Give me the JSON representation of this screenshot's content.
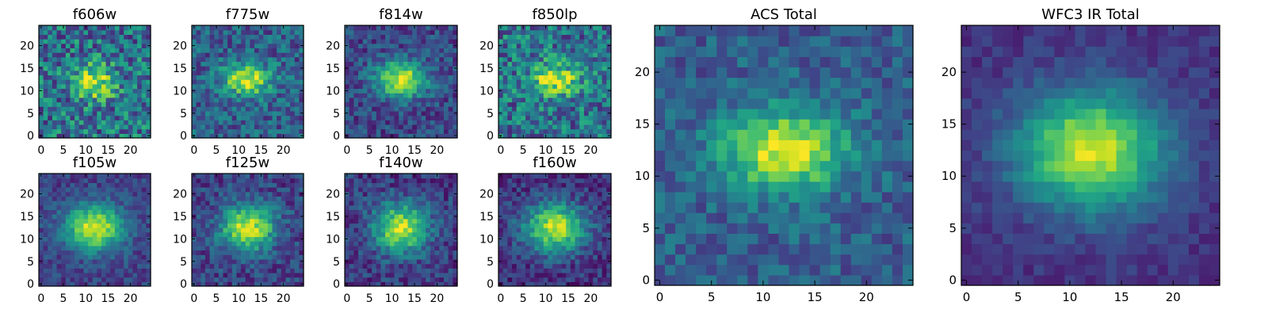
{
  "colormap": "viridis",
  "chart_data": [
    {
      "type": "heatmap",
      "title": "f606w",
      "xticks": [
        0,
        5,
        10,
        15,
        20
      ],
      "yticks": [
        0,
        5,
        10,
        15,
        20
      ],
      "xlim": [
        -0.5,
        24.5
      ],
      "ylim": [
        -0.5,
        24.5
      ],
      "grid_size": 25,
      "peak": [
        12,
        12
      ],
      "sigma": [
        3.2,
        2.6
      ],
      "amplitude": 0.55,
      "baseline": 0.38,
      "noise": 0.28
    },
    {
      "type": "heatmap",
      "title": "f775w",
      "xticks": [
        0,
        5,
        10,
        15,
        20
      ],
      "yticks": [
        0,
        5,
        10,
        15,
        20
      ],
      "xlim": [
        -0.5,
        24.5
      ],
      "ylim": [
        -0.5,
        24.5
      ],
      "grid_size": 25,
      "peak": [
        12,
        12.5
      ],
      "sigma": [
        3.8,
        2.4
      ],
      "amplitude": 0.65,
      "baseline": 0.3,
      "noise": 0.2
    },
    {
      "type": "heatmap",
      "title": "f814w",
      "xticks": [
        0,
        5,
        10,
        15,
        20
      ],
      "yticks": [
        0,
        5,
        10,
        15,
        20
      ],
      "xlim": [
        -0.5,
        24.5
      ],
      "ylim": [
        -0.5,
        24.5
      ],
      "grid_size": 25,
      "peak": [
        12,
        12.5
      ],
      "sigma": [
        4.0,
        2.8
      ],
      "amplitude": 0.72,
      "baseline": 0.22,
      "noise": 0.16
    },
    {
      "type": "heatmap",
      "title": "f850lp",
      "xticks": [
        0,
        5,
        10,
        15,
        20
      ],
      "yticks": [
        0,
        5,
        10,
        15,
        20
      ],
      "xlim": [
        -0.5,
        24.5
      ],
      "ylim": [
        -0.5,
        24.5
      ],
      "grid_size": 25,
      "peak": [
        12,
        12.5
      ],
      "sigma": [
        3.6,
        2.6
      ],
      "amplitude": 0.55,
      "baseline": 0.38,
      "noise": 0.26
    },
    {
      "type": "heatmap",
      "title": "f105w",
      "xticks": [
        0,
        5,
        10,
        15,
        20
      ],
      "yticks": [
        0,
        5,
        10,
        15,
        20
      ],
      "xlim": [
        -0.5,
        24.5
      ],
      "ylim": [
        -0.5,
        24.5
      ],
      "grid_size": 25,
      "peak": [
        12,
        12.5
      ],
      "sigma": [
        4.5,
        3.6
      ],
      "amplitude": 0.75,
      "baseline": 0.2,
      "noise": 0.12
    },
    {
      "type": "heatmap",
      "title": "f125w",
      "xticks": [
        0,
        5,
        10,
        15,
        20
      ],
      "yticks": [
        0,
        5,
        10,
        15,
        20
      ],
      "xlim": [
        -0.5,
        24.5
      ],
      "ylim": [
        -0.5,
        24.5
      ],
      "grid_size": 25,
      "peak": [
        12,
        12.5
      ],
      "sigma": [
        4.3,
        3.6
      ],
      "amplitude": 0.72,
      "baseline": 0.2,
      "noise": 0.15
    },
    {
      "type": "heatmap",
      "title": "f140w",
      "xticks": [
        0,
        5,
        10,
        15,
        20
      ],
      "yticks": [
        0,
        5,
        10,
        15,
        20
      ],
      "xlim": [
        -0.5,
        24.5
      ],
      "ylim": [
        -0.5,
        24.5
      ],
      "grid_size": 25,
      "peak": [
        12,
        12.5
      ],
      "sigma": [
        4.3,
        3.8
      ],
      "amplitude": 0.72,
      "baseline": 0.18,
      "noise": 0.15
    },
    {
      "type": "heatmap",
      "title": "f160w",
      "xticks": [
        0,
        5,
        10,
        15,
        20
      ],
      "yticks": [
        0,
        5,
        10,
        15,
        20
      ],
      "xlim": [
        -0.5,
        24.5
      ],
      "ylim": [
        -0.5,
        24.5
      ],
      "grid_size": 25,
      "peak": [
        12,
        12.5
      ],
      "sigma": [
        4.8,
        3.8
      ],
      "amplitude": 0.75,
      "baseline": 0.15,
      "noise": 0.14
    },
    {
      "type": "heatmap",
      "title": "ACS Total",
      "xticks": [
        0,
        5,
        10,
        15,
        20
      ],
      "yticks": [
        0,
        5,
        10,
        15,
        20
      ],
      "xlim": [
        -0.5,
        24.5
      ],
      "ylim": [
        -0.5,
        24.5
      ],
      "grid_size": 25,
      "peak": [
        12,
        12.5
      ],
      "sigma": [
        4.2,
        2.8
      ],
      "amplitude": 0.65,
      "baseline": 0.3,
      "noise": 0.14
    },
    {
      "type": "heatmap",
      "title": "WFC3 IR Total",
      "xticks": [
        0,
        5,
        10,
        15,
        20
      ],
      "yticks": [
        0,
        5,
        10,
        15,
        20
      ],
      "xlim": [
        -0.5,
        24.5
      ],
      "ylim": [
        -0.5,
        24.5
      ],
      "grid_size": 25,
      "peak": [
        12,
        12.5
      ],
      "sigma": [
        5.0,
        4.0
      ],
      "amplitude": 0.78,
      "baseline": 0.15,
      "noise": 0.07
    }
  ]
}
